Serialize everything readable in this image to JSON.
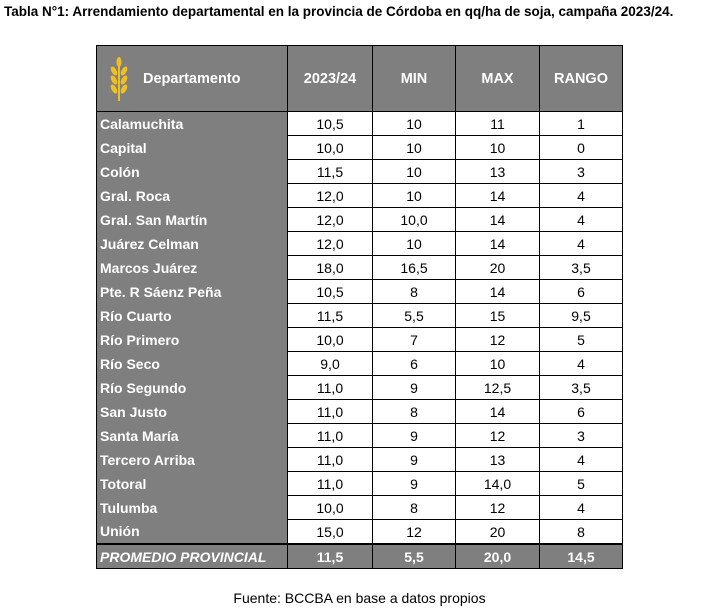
{
  "header": {
    "title": "Tabla N°1: Arrendamiento departamental en la provincia de Córdoba en qq/ha de soja, campaña 2023/24."
  },
  "table": {
    "columns": [
      "Departamento",
      "2023/24",
      "MIN",
      "MAX",
      "RANGO"
    ],
    "rows": [
      [
        "Calamuchita",
        "10,5",
        "10",
        "11",
        "1"
      ],
      [
        "Capital",
        "10,0",
        "10",
        "10",
        "0"
      ],
      [
        "Colón",
        "11,5",
        "10",
        "13",
        "3"
      ],
      [
        "Gral. Roca",
        "12,0",
        "10",
        "14",
        "4"
      ],
      [
        "Gral. San Martín",
        "12,0",
        "10,0",
        "14",
        "4"
      ],
      [
        "Juárez Celman",
        "12,0",
        "10",
        "14",
        "4"
      ],
      [
        "Marcos Juárez",
        "18,0",
        "16,5",
        "20",
        "3,5"
      ],
      [
        "Pte. R Sáenz Peña",
        "10,5",
        "8",
        "14",
        "6"
      ],
      [
        "Río Cuarto",
        "11,5",
        "5,5",
        "15",
        "9,5"
      ],
      [
        "Río Primero",
        "10,0",
        "7",
        "12",
        "5"
      ],
      [
        "Río Seco",
        "9,0",
        "6",
        "10",
        "4"
      ],
      [
        "Río Segundo",
        "11,0",
        "9",
        "12,5",
        "3,5"
      ],
      [
        "San Justo",
        "11,0",
        "8",
        "14",
        "6"
      ],
      [
        "Santa María",
        "11,0",
        "9",
        "12",
        "3"
      ],
      [
        "Tercero Arriba",
        "11,0",
        "9",
        "13",
        "4"
      ],
      [
        "Totoral",
        "11,0",
        "9",
        "14,0",
        "5"
      ],
      [
        "Tulumba",
        "10,0",
        "8",
        "12",
        "4"
      ],
      [
        "Unión",
        "15,0",
        "12",
        "20",
        "8"
      ]
    ],
    "footer_row": [
      "PROMEDIO PROVINCIAL",
      "11,5",
      "5,5",
      "20,0",
      "14,5"
    ]
  },
  "source": "Fuente: BCCBA en base a datos propios"
}
